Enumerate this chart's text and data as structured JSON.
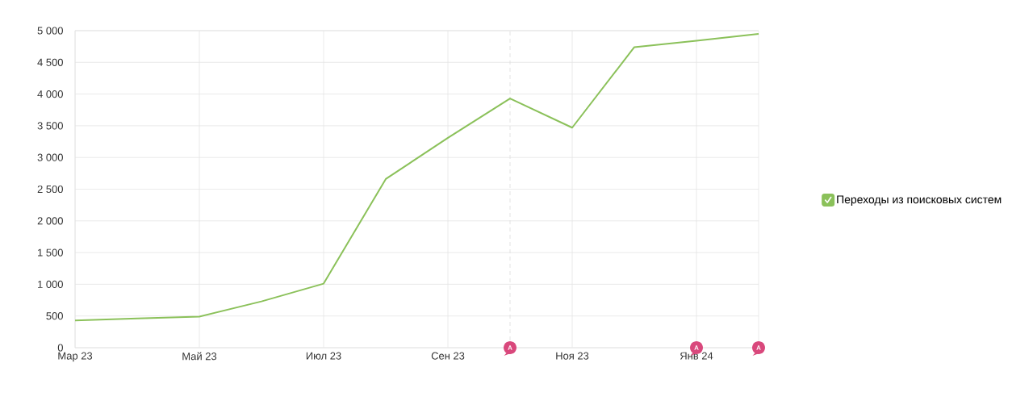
{
  "chart_data": {
    "type": "line",
    "x": [
      "2023-03",
      "2023-04",
      "2023-05",
      "2023-06",
      "2023-07",
      "2023-08",
      "2023-09",
      "2023-10",
      "2023-11",
      "2023-12",
      "2024-01",
      "2024-02"
    ],
    "series": [
      {
        "name": "Переходы из поисковых систем",
        "color": "#8bc15a",
        "values": [
          430,
          460,
          490,
          730,
          1010,
          2660,
          3310,
          3930,
          3470,
          4740,
          4840,
          4950
        ]
      }
    ],
    "xlim": [
      "2023-03",
      "2024-02"
    ],
    "xticks": [
      {
        "value": "2023-03",
        "label": "Мар 23"
      },
      {
        "value": "2023-05",
        "label": "Май 23"
      },
      {
        "value": "2023-07",
        "label": "Июл 23"
      },
      {
        "value": "2023-09",
        "label": "Сен 23"
      },
      {
        "value": "2023-11",
        "label": "Ноя 23"
      },
      {
        "value": "2024-01",
        "label": "Янв 24"
      }
    ],
    "ylim": [
      0,
      5000
    ],
    "yticks": [
      0,
      500,
      {
        "value": 1000,
        "label": "1 000"
      },
      {
        "value": 1500,
        "label": "1 500"
      },
      {
        "value": 2000,
        "label": "2 000"
      },
      {
        "value": 2500,
        "label": "2 500"
      },
      {
        "value": 3000,
        "label": "3 000"
      },
      {
        "value": 3500,
        "label": "3 500"
      },
      {
        "value": 4000,
        "label": "4 000"
      },
      {
        "value": 4500,
        "label": "4 500"
      },
      {
        "value": 5000,
        "label": "5 000"
      }
    ],
    "grid": true,
    "legend": "right",
    "ref_lines": [
      {
        "axis": "x",
        "value": "2023-10",
        "line_style": "dashed",
        "color": "#dcdcdc"
      }
    ],
    "annotations": [
      {
        "text": "A",
        "x": "2023-10",
        "y": 0
      },
      {
        "text": "A",
        "x": "2024-01",
        "y": 0
      },
      {
        "text": "A",
        "x": "2024-02",
        "y": 0
      }
    ]
  }
}
